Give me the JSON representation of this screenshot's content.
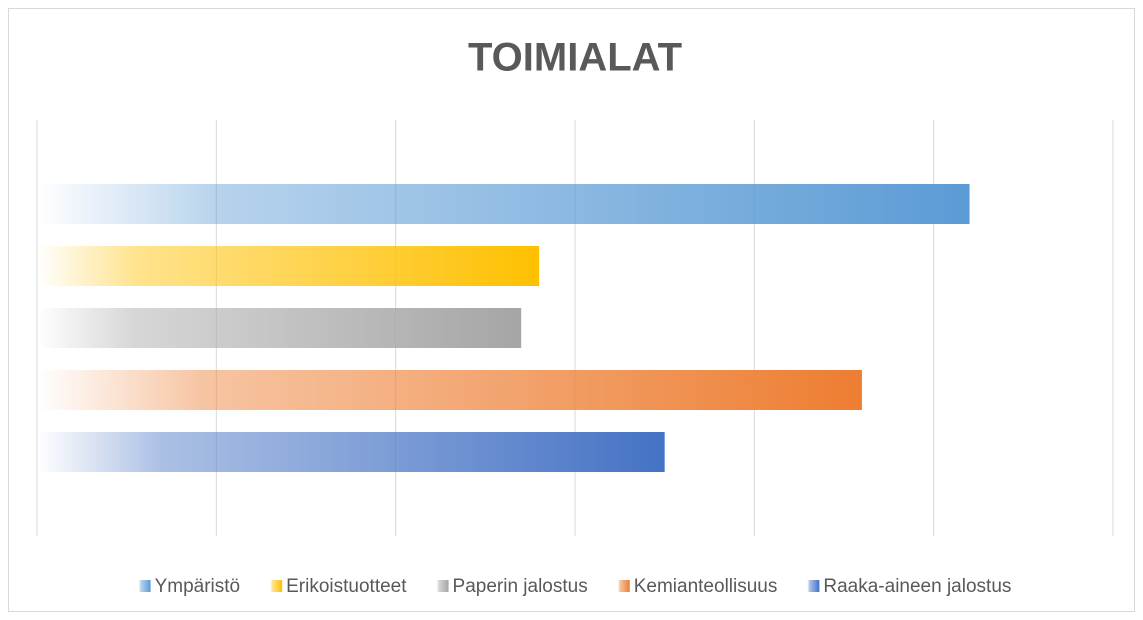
{
  "chart_data": {
    "type": "bar",
    "orientation": "horizontal",
    "title": "TOIMIALAT",
    "series": [
      {
        "name": "Ympäristö",
        "color": "#5b9bd5",
        "values": [
          5.2
        ]
      },
      {
        "name": "Erikoistuotteet",
        "color": "#ffc000",
        "values": [
          2.8
        ]
      },
      {
        "name": "Paperin jalostus",
        "color": "#a5a5a5",
        "values": [
          2.7
        ]
      },
      {
        "name": "Kemianteollisuus",
        "color": "#ed7d31",
        "values": [
          4.6
        ]
      },
      {
        "name": "Raaka-aineen jalostus",
        "color": "#4472c4",
        "values": [
          3.5
        ]
      }
    ],
    "xlim": [
      0,
      6
    ],
    "xticks": [
      0,
      1,
      2,
      3,
      4,
      5,
      6
    ],
    "grid": true,
    "legend": "bottom"
  }
}
